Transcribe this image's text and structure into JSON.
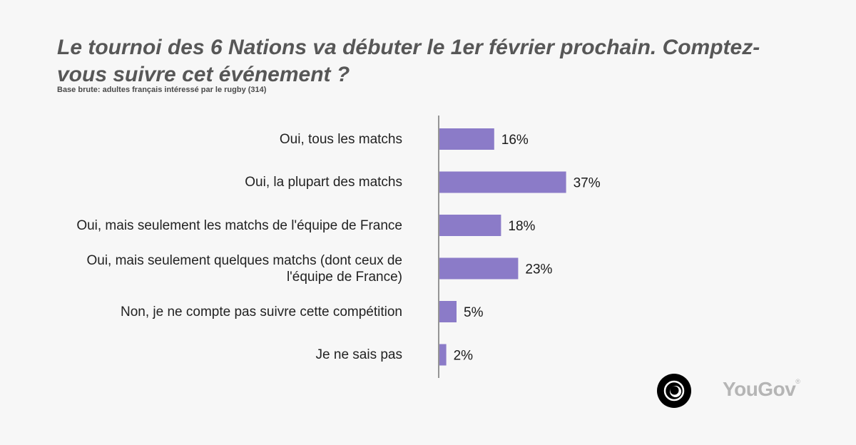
{
  "title": "Le tournoi des 6 Nations va débuter le 1er février prochain. Comptez-vous suivre cet événement ?",
  "subtitle": "Base brute: adultes français intéressé par le rugby (314)",
  "brand": {
    "name": "YouGov",
    "bar_color": "#8b7bc8",
    "logo_color": "#000000"
  },
  "chart_data": {
    "type": "bar",
    "orientation": "horizontal",
    "title": "Le tournoi des 6 Nations va débuter le 1er février prochain. Comptez-vous suivre cet événement ?",
    "categories": [
      [
        "Oui, tous les matchs"
      ],
      [
        "Oui, la plupart des matchs"
      ],
      [
        "Oui, mais seulement les matchs de l'équipe de France"
      ],
      [
        "Oui, mais seulement quelques matchs (dont ceux de",
        "l'équipe de France)"
      ],
      [
        "Non, je ne compte pas suivre cette compétition"
      ],
      [
        "Je ne sais pas"
      ]
    ],
    "values": [
      16,
      37,
      18,
      23,
      5,
      2
    ],
    "value_labels": [
      "16%",
      "37%",
      "18%",
      "23%",
      "5%",
      "2%"
    ],
    "unit": "%",
    "xlim": [
      0,
      100
    ],
    "grid": false
  }
}
